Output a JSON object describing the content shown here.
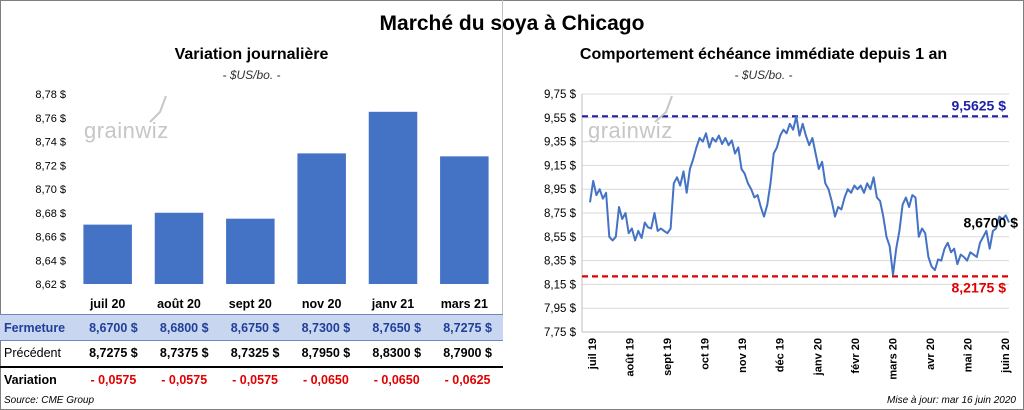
{
  "title": "Marché du soya à Chicago",
  "left": {
    "title": "Variation  journalière",
    "unit": "- $US/bo. -",
    "watermark": "grainwiz"
  },
  "right": {
    "title": "Comportement  échéance immédiate depuis 1 an",
    "unit": "- $US/bo. -",
    "watermark": "grainwiz"
  },
  "table": {
    "rows": [
      {
        "label": "Fermeture",
        "values": [
          "8,6700  $",
          "8,6800  $",
          "8,6750  $",
          "8,7300  $",
          "8,7650  $",
          "8,7275  $"
        ]
      },
      {
        "label": "Précédent",
        "values": [
          "8,7275  $",
          "8,7375  $",
          "8,7325  $",
          "8,7950  $",
          "8,8300  $",
          "8,7900  $"
        ]
      },
      {
        "label": "Variation",
        "values": [
          "- 0,0575",
          "- 0,0575",
          "- 0,0575",
          "- 0,0650",
          "- 0,0650",
          "- 0,0625"
        ]
      }
    ]
  },
  "footer": {
    "source": "Source: CME Group",
    "updated": "Mise à jour: mar 16 juin 2020"
  },
  "colors": {
    "bar": "#4472c4",
    "line": "#4472c4",
    "max": "#1f1fa8",
    "min": "#e00000"
  },
  "chart_data": [
    {
      "type": "bar",
      "title": "Variation  journalière",
      "subtitle": "- $US/bo. -",
      "categories": [
        "juil 20",
        "août 20",
        "sept 20",
        "nov 20",
        "janv 21",
        "mars 21"
      ],
      "values": [
        8.67,
        8.68,
        8.675,
        8.73,
        8.765,
        8.7275
      ],
      "ylim": [
        8.62,
        8.78
      ],
      "yticks": [
        8.62,
        8.64,
        8.66,
        8.68,
        8.7,
        8.72,
        8.74,
        8.76,
        8.78
      ],
      "ytick_labels": [
        "8,62 $",
        "8,64 $",
        "8,66 $",
        "8,68 $",
        "8,70 $",
        "8,72 $",
        "8,74 $",
        "8,76 $",
        "8,78 $"
      ],
      "grid": false
    },
    {
      "type": "line",
      "title": "Comportement  échéance immédiate depuis 1 an",
      "subtitle": "- $US/bo. -",
      "x_labels": [
        "juil 19",
        "août 19",
        "sept 19",
        "oct 19",
        "nov 19",
        "déc 19",
        "janv 20",
        "févr 20",
        "mars 20",
        "avr 20",
        "mai 20",
        "juin 20"
      ],
      "ylim": [
        7.75,
        9.75
      ],
      "yticks": [
        7.75,
        7.95,
        8.15,
        8.35,
        8.55,
        8.75,
        8.95,
        9.15,
        9.35,
        9.55,
        9.75
      ],
      "ytick_labels": [
        "7,75 $",
        "7,95 $",
        "8,15 $",
        "8,35 $",
        "8,55 $",
        "8,75 $",
        "8,95 $",
        "9,15 $",
        "9,35 $",
        "9,55 $",
        "9,75 $"
      ],
      "values": [
        8.84,
        9.02,
        8.9,
        8.95,
        8.87,
        8.92,
        8.55,
        8.52,
        8.55,
        8.8,
        8.7,
        8.75,
        8.58,
        8.62,
        8.52,
        8.6,
        8.54,
        8.67,
        8.63,
        8.62,
        8.75,
        8.6,
        8.62,
        8.6,
        8.58,
        8.62,
        9.0,
        9.05,
        8.98,
        9.1,
        8.92,
        9.12,
        9.2,
        9.3,
        9.38,
        9.35,
        9.42,
        9.3,
        9.38,
        9.35,
        9.4,
        9.33,
        9.38,
        9.32,
        9.36,
        9.25,
        9.3,
        9.12,
        9.08,
        9.0,
        8.95,
        8.88,
        8.9,
        8.8,
        8.72,
        8.82,
        9.0,
        9.25,
        9.3,
        9.4,
        9.45,
        9.42,
        9.5,
        9.45,
        9.56,
        9.4,
        9.5,
        9.4,
        9.32,
        9.38,
        9.25,
        9.12,
        9.18,
        9.0,
        8.95,
        8.85,
        8.72,
        8.8,
        8.78,
        8.88,
        8.95,
        8.92,
        8.98,
        8.95,
        8.98,
        8.92,
        9.0,
        8.95,
        9.05,
        8.88,
        8.85,
        8.72,
        8.55,
        8.47,
        8.23,
        8.45,
        8.6,
        8.82,
        8.88,
        8.8,
        8.9,
        8.88,
        8.55,
        8.62,
        8.58,
        8.38,
        8.3,
        8.27,
        8.36,
        8.35,
        8.45,
        8.5,
        8.42,
        8.45,
        8.32,
        8.4,
        8.38,
        8.35,
        8.42,
        8.4,
        8.38,
        8.5,
        8.55,
        8.6,
        8.45,
        8.6,
        8.62,
        8.72,
        8.7,
        8.73,
        8.67
      ],
      "reference_lines": [
        {
          "label": "9,5625 $",
          "value": 9.5625
        },
        {
          "label": "8,2175 $",
          "value": 8.2175
        }
      ],
      "last_label": "8,6700 $",
      "last_value": 8.67
    }
  ]
}
